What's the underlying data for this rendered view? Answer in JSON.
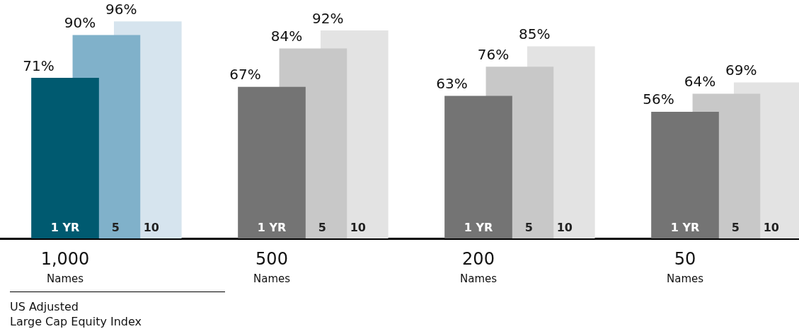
{
  "chart_data": {
    "type": "bar",
    "categories": [
      "1,000\nNames",
      "500\nNames",
      "200\nNames",
      "50\nNames"
    ],
    "series": [
      {
        "name": "1 YR",
        "colors": [
          "#005a70",
          "#747474",
          "#747474",
          "#747474"
        ],
        "values": [
          71,
          67,
          63,
          56
        ],
        "value_labels": [
          "71%",
          "67%",
          "63%",
          "56%"
        ]
      },
      {
        "name": "5",
        "colors": [
          "#80b1ca",
          "#c8c8c8",
          "#c8c8c8",
          "#c8c8c8"
        ],
        "values": [
          90,
          84,
          76,
          64
        ],
        "value_labels": [
          "90%",
          "84%",
          "76%",
          "64%"
        ]
      },
      {
        "name": "10",
        "colors": [
          "#d6e4ee",
          "#e3e3e3",
          "#e3e3e3",
          "#e3e3e3"
        ],
        "values": [
          96,
          92,
          85,
          69
        ],
        "value_labels": [
          "96%",
          "92%",
          "85%",
          "69%"
        ]
      }
    ],
    "legend": false,
    "annotations": [
      "US Adjusted\nLarge Cap Equity Index"
    ]
  }
}
